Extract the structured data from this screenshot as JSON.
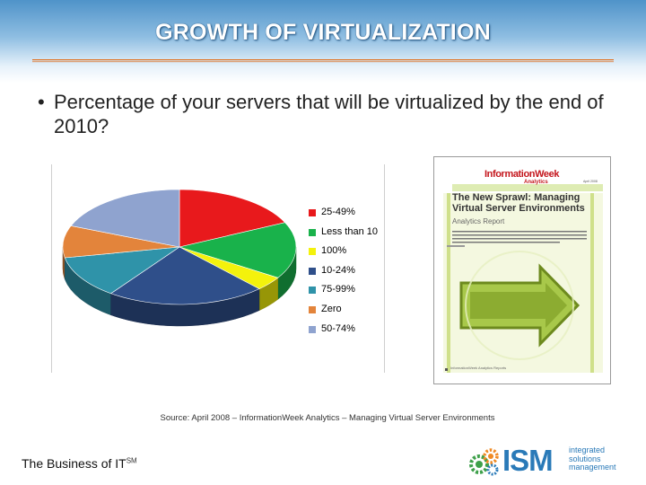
{
  "slide": {
    "title": "GROWTH OF VIRTUALIZATION",
    "bullet": "Percentage of your servers that will be virtualized by the end of 2010?",
    "bullet_marker": "•",
    "source": "Source: April 2008 – InformationWeek Analytics – Managing Virtual Server Environments",
    "footer_left": "The Business of IT",
    "footer_mark": "SM",
    "header_color": "#4f93c9"
  },
  "report": {
    "brand": "InformationWeek",
    "brand_sub": "Analytics",
    "date": "April 2008",
    "headline": "The New Sprawl: Managing Virtual Server Environments",
    "label": "Analytics Report",
    "footer": "InformationWeek Analytics Reports",
    "icon": "arrow-right-icon"
  },
  "logo": {
    "name": "ISM",
    "tagline": [
      "integrated",
      "solutions",
      "management"
    ]
  },
  "chart_data": {
    "type": "pie",
    "style": "3d",
    "title": "",
    "legend_position": "right",
    "slices": [
      {
        "label": "25-49%",
        "value": 18,
        "color": "#e8191c"
      },
      {
        "label": "Less than 10",
        "value": 16,
        "color": "#19b24b"
      },
      {
        "label": "100%",
        "value": 4,
        "color": "#f4f20c"
      },
      {
        "label": "10-24%",
        "value": 22,
        "color": "#2f4f8a"
      },
      {
        "label": "75-99%",
        "value": 12,
        "color": "#2f93a9"
      },
      {
        "label": "Zero",
        "value": 9,
        "color": "#e3843b"
      },
      {
        "label": "50-74%",
        "value": 19,
        "color": "#8fa3cf"
      }
    ]
  }
}
